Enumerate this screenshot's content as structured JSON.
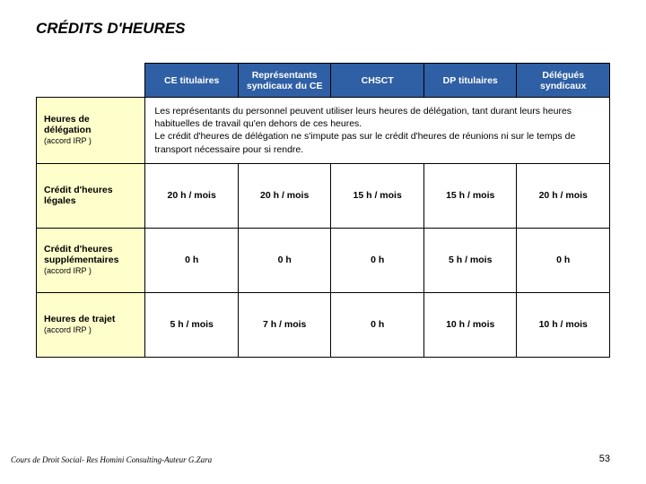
{
  "title": "CRÉDITS D'HEURES",
  "columns": [
    "CE titulaires",
    "Représentants syndicaux du CE",
    "CHSCT",
    "DP titulaires",
    "Délégués syndicaux"
  ],
  "rows": [
    {
      "label": "Heures de délégation",
      "sub": "(accord IRP )",
      "desc": "Les représentants du personnel peuvent utiliser leurs heures de délégation, tant durant leurs heures habituelles de travail qu'en dehors de ces heures.\nLe crédit d'heures de délégation ne s'impute pas sur le crédit d'heures de réunions ni sur le temps de transport nécessaire pour si rendre."
    },
    {
      "label": "Crédit d'heures légales",
      "cells": [
        "20 h / mois",
        "20 h / mois",
        "15 h / mois",
        "15 h / mois",
        "20 h / mois"
      ]
    },
    {
      "label": "Crédit d'heures supplémentaires",
      "sub": "(accord IRP )",
      "cells": [
        "0 h",
        "0 h",
        "0 h",
        "5 h / mois",
        "0 h"
      ]
    },
    {
      "label": "Heures de trajet",
      "sub": "(accord IRP )",
      "cells": [
        "5 h / mois",
        "7 h / mois",
        "0 h",
        "10 h / mois",
        "10 h / mois"
      ]
    }
  ],
  "footer_left": "Cours de Droit Social- Res Homini Consulting-Auteur G.Zara",
  "page_number": "53",
  "colors": {
    "header_bg": "#2f5fa5",
    "rowhead_bg": "#ffffcc"
  }
}
